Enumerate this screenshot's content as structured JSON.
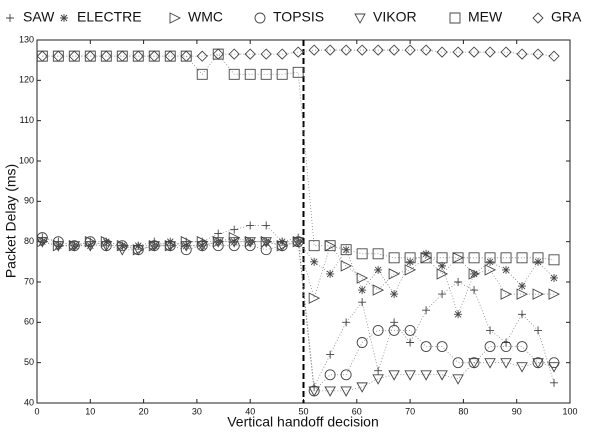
{
  "chart_data": {
    "type": "line",
    "xlabel": "Vertical handoff decision",
    "ylabel": "Packet Delay (ms)",
    "xlim": [
      0,
      100
    ],
    "ylim": [
      40,
      130
    ],
    "xticks": [
      0,
      10,
      20,
      30,
      40,
      50,
      60,
      70,
      80,
      90,
      100
    ],
    "yticks": [
      40,
      50,
      60,
      70,
      80,
      90,
      100,
      110,
      120,
      130
    ],
    "vline": 50,
    "x": [
      1,
      4,
      7,
      10,
      13,
      16,
      19,
      22,
      25,
      28,
      31,
      34,
      37,
      40,
      43,
      46,
      49,
      52,
      55,
      58,
      61,
      64,
      67,
      70,
      73,
      76,
      79,
      82,
      85,
      88,
      91,
      94,
      97
    ],
    "series": [
      {
        "name": "SAW",
        "marker": "plus",
        "color": "#444",
        "values": [
          81,
          80,
          79,
          80,
          79,
          79,
          79,
          80,
          79,
          80,
          80,
          82,
          83,
          84,
          84,
          80,
          81,
          44,
          52,
          60,
          65,
          48,
          60,
          55,
          63,
          67,
          70,
          68,
          58,
          55,
          62,
          58,
          45
        ]
      },
      {
        "name": "ELECTRE",
        "marker": "star",
        "color": "#444",
        "values": [
          80,
          79,
          79,
          79,
          80,
          79,
          79,
          79,
          80,
          79,
          79,
          80,
          80,
          80,
          80,
          80,
          80,
          75,
          72,
          78,
          68,
          73,
          67,
          75,
          77,
          74,
          62,
          72,
          75,
          73,
          69,
          75,
          71
        ]
      },
      {
        "name": "WMC",
        "marker": "triangle-right",
        "color": "#444",
        "values": [
          80,
          79,
          79,
          80,
          80,
          79,
          78,
          79,
          79,
          80,
          80,
          80,
          81,
          80,
          80,
          79,
          80,
          66,
          79,
          74,
          71,
          68,
          72,
          73,
          76,
          72,
          76,
          72,
          73,
          67,
          67,
          67,
          67
        ]
      },
      {
        "name": "TOPSIS",
        "marker": "circle",
        "color": "#444",
        "values": [
          81,
          80,
          79,
          80,
          79,
          79,
          78,
          79,
          79,
          78,
          79,
          79,
          79,
          79,
          78,
          79,
          80,
          43,
          47,
          47,
          55,
          58,
          58,
          58,
          54,
          54,
          50,
          50,
          54,
          54,
          54,
          50,
          50
        ]
      },
      {
        "name": "VIKOR",
        "marker": "triangle-down",
        "color": "#444",
        "values": [
          80,
          79,
          79,
          79,
          79,
          78,
          78,
          79,
          79,
          79,
          79,
          80,
          80,
          80,
          80,
          79,
          80,
          43,
          43,
          43,
          44,
          46,
          47,
          47,
          47,
          47,
          46,
          50,
          50,
          50,
          49,
          50,
          49
        ]
      },
      {
        "name": "MEW",
        "marker": "square",
        "color": "#444",
        "values": [
          126,
          126,
          126,
          126,
          126,
          126,
          126,
          126,
          126,
          126,
          121.5,
          126.5,
          121.5,
          121.5,
          121.5,
          121.5,
          122,
          79,
          79,
          78,
          77,
          77,
          76,
          76,
          76,
          76,
          76,
          76,
          76,
          76,
          76,
          76,
          75.5
        ]
      },
      {
        "name": "GRA",
        "marker": "diamond",
        "color": "#444",
        "values": [
          126,
          126,
          126,
          126,
          126,
          126,
          126,
          126,
          126,
          126,
          126,
          126.5,
          126.5,
          126.5,
          126.5,
          126.5,
          127,
          127.5,
          127.5,
          127.5,
          127.5,
          127.5,
          127.5,
          127.5,
          127.5,
          127,
          127,
          127,
          127,
          127,
          126.5,
          126.5,
          126
        ]
      }
    ]
  }
}
